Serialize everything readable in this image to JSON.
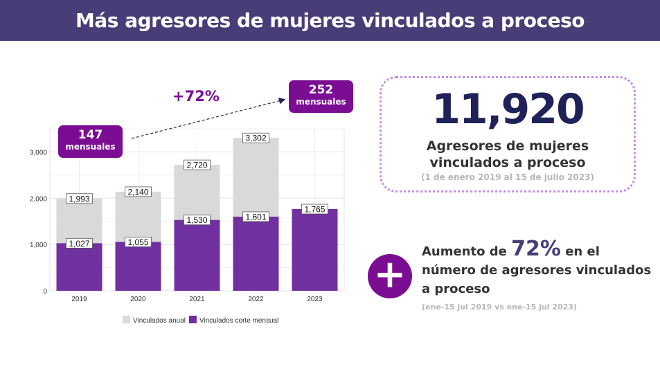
{
  "header": {
    "title": "Más agresores de mujeres vinculados a proceso"
  },
  "callouts": {
    "left": {
      "value": "147",
      "unit": "mensuales"
    },
    "right": {
      "value": "252",
      "unit": "mensuales"
    },
    "growth": "+72%"
  },
  "summary": {
    "total": "11,920",
    "label_line1": "Agresores de mujeres",
    "label_line2": "vinculados a proceso",
    "range": "(1 de enero 2019 al 15 de julio 2023)"
  },
  "increase": {
    "prefix": "Aumento de ",
    "percent": "72%",
    "suffix": " en el número de agresores vinculados a proceso",
    "note": "(ene-15 jul  2019 vs ene-15 jul 2023)"
  },
  "colors": {
    "header": "#483d77",
    "accent": "#7b0d93",
    "bar_annual": "#d9d9d9",
    "bar_cut": "#7030a0",
    "big_number": "#1f2158"
  },
  "chart_data": {
    "type": "bar",
    "categories": [
      "2019",
      "2020",
      "2021",
      "2022",
      "2023"
    ],
    "series": [
      {
        "name": "Vinculados anual",
        "values": [
          1993,
          2140,
          2720,
          3302,
          null
        ]
      },
      {
        "name": "Vinculados corte mensual",
        "values": [
          1027,
          1055,
          1530,
          1601,
          1765
        ]
      }
    ],
    "data_labels": {
      "annual": [
        "1,993",
        "2,140",
        "2,720",
        "3,302",
        ""
      ],
      "cut": [
        "1,027",
        "1,055",
        "1,530",
        "1,601",
        "1,765"
      ]
    },
    "yticks": [
      0,
      1000,
      2000,
      3000
    ],
    "ytick_labels": [
      "0",
      "1,000",
      "2,000",
      "3,000"
    ],
    "ylim": [
      0,
      3500
    ],
    "grid": true,
    "legend": "bottom",
    "xlabel": "",
    "ylabel": ""
  }
}
